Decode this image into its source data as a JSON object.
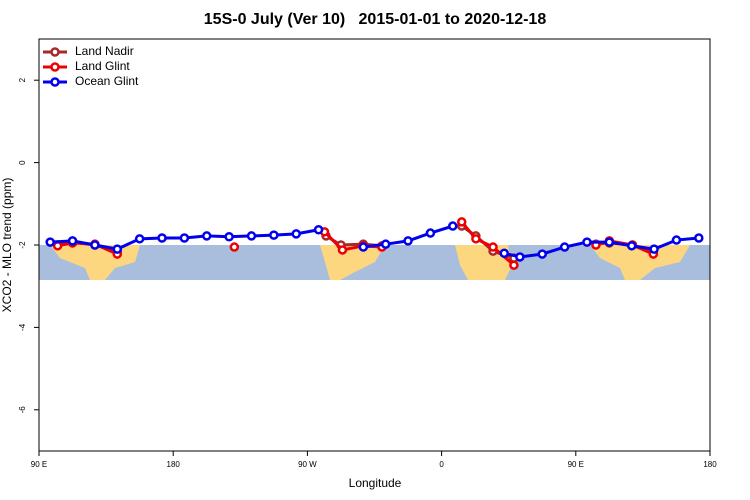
{
  "chart_data": {
    "type": "line",
    "title": "15S-0 July (Ver 10)   2015-01-01 to 2020-12-18",
    "x_label": "Longitude",
    "y_label": "XCO2 - MLO trend (ppm)",
    "xlim": [
      90,
      540
    ],
    "xticks": [
      {
        "value": 90,
        "label": "90 E"
      },
      {
        "value": 180,
        "label": "180"
      },
      {
        "value": 270,
        "label": "90 W"
      },
      {
        "value": 360,
        "label": "0"
      },
      {
        "value": 450,
        "label": "90 E"
      },
      {
        "value": 540,
        "label": "180"
      }
    ],
    "ylim": [
      -7,
      3
    ],
    "yticks": [
      -6,
      -4,
      -2,
      0,
      2
    ],
    "legend": "top-left",
    "series": [
      {
        "name": "Land Nadir",
        "color": "#a52a2a",
        "x": [
          102.5,
          112.5,
          127.5,
          142.5,
          200,
          282.5,
          292.5,
          307.5,
          320,
          350,
          373.5,
          383,
          394.5,
          408.5,
          440,
          463.5,
          472.5,
          488,
          502
        ],
        "values": [
          -2.0,
          -1.93,
          -2.0,
          -2.15,
          null,
          -1.78,
          -2.0,
          -1.98,
          -2.02,
          null,
          -1.54,
          -1.78,
          -2.15,
          -2.32,
          null,
          -1.98,
          -1.95,
          -2.0,
          -2.18
        ]
      },
      {
        "name": "Land Glint",
        "color": "#ee0000",
        "x": [
          102.5,
          112.5,
          127.5,
          142.5,
          180,
          221,
          250,
          281.5,
          293.5,
          307.5,
          320,
          350,
          373.5,
          383,
          394.5,
          408.5,
          440,
          463.5,
          472.5,
          488,
          502
        ],
        "values": [
          -2.02,
          -1.95,
          -1.98,
          -2.22,
          null,
          -2.05,
          null,
          -1.68,
          -2.12,
          -2.02,
          -2.05,
          null,
          -1.44,
          -1.85,
          -2.05,
          -2.49,
          null,
          -2.0,
          -1.9,
          -2.0,
          -2.22
        ]
      },
      {
        "name": "Ocean Glint",
        "color": "#0000ee",
        "x": [
          97.5,
          112.5,
          127.5,
          142.5,
          157.5,
          172.5,
          187.5,
          202.5,
          217.5,
          232.5,
          247.5,
          262.5,
          277.5,
          292.5,
          307.5,
          322.5,
          337.5,
          352.5,
          367.5,
          382.5,
          402,
          412.5,
          427.5,
          442.5,
          457.5,
          472.5,
          487.5,
          502.5,
          517.5,
          532.5
        ],
        "values": [
          -1.93,
          -1.9,
          -2.0,
          -2.1,
          -1.85,
          -1.83,
          -1.83,
          -1.78,
          -1.8,
          -1.78,
          -1.76,
          -1.73,
          -1.63,
          null,
          -2.05,
          -1.98,
          -1.9,
          -1.71,
          -1.54,
          null,
          -2.2,
          -2.29,
          -2.22,
          -2.05,
          -1.93,
          -1.93,
          -2.02,
          -2.1,
          -1.88,
          -1.83
        ]
      }
    ]
  }
}
